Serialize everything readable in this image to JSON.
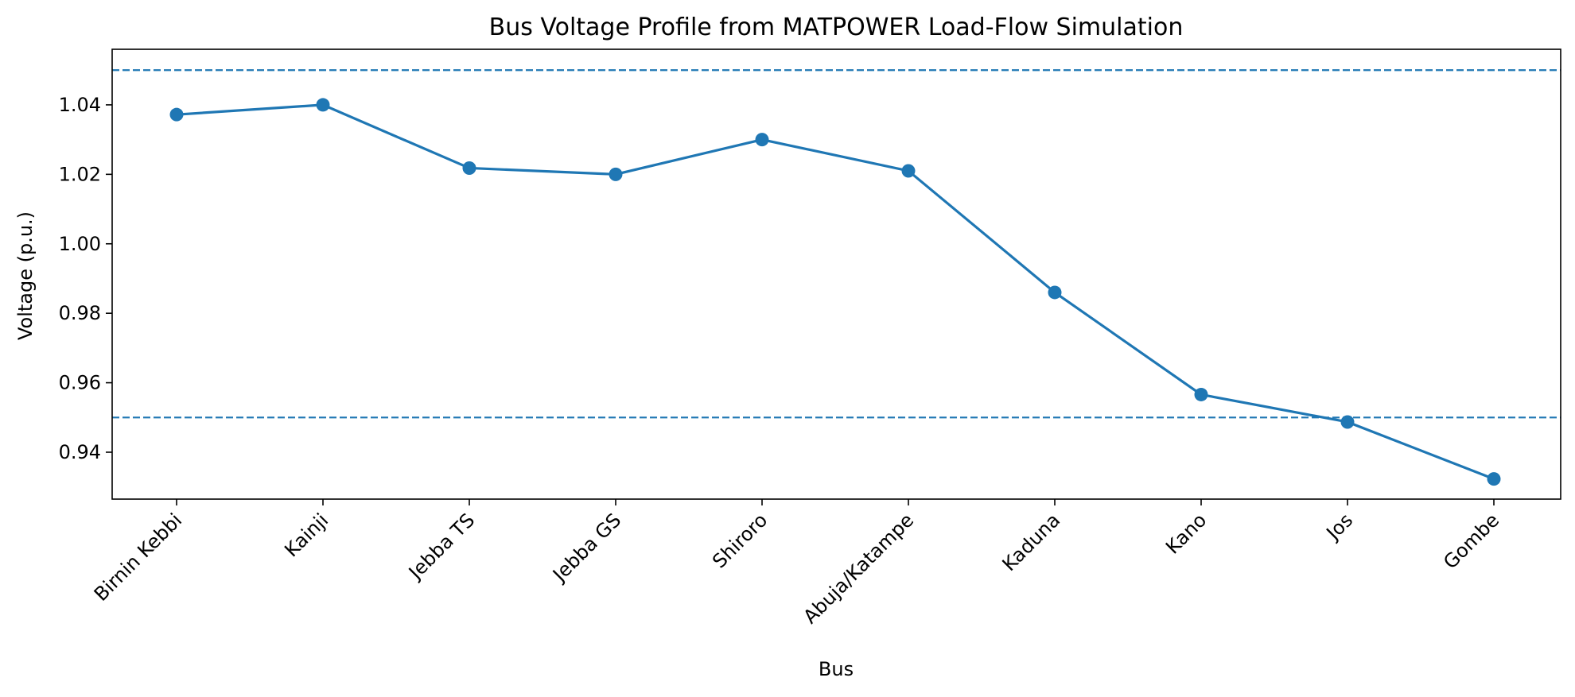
{
  "chart_data": {
    "type": "line",
    "title": "Bus Voltage Profile from MATPOWER Load-Flow Simulation",
    "xlabel": "Bus",
    "ylabel": "Voltage (p.u.)",
    "categories": [
      "Birnin Kebbi",
      "Kainji",
      "Jebba TS",
      "Jebba GS",
      "Shiroro",
      "Abuja/Katampe",
      "Kaduna",
      "Kano",
      "Jos",
      "Gombe"
    ],
    "series": [
      {
        "values": [
          1.0372,
          1.04,
          1.0218,
          1.02,
          1.03,
          1.021,
          0.986,
          0.9566,
          0.9487,
          0.9323
        ]
      }
    ],
    "reference_lines": [
      1.05,
      0.95
    ],
    "ylim": [
      0.9265,
      1.056
    ],
    "yticks": [
      "0.94",
      "0.96",
      "0.98",
      "1.00",
      "1.02",
      "1.04"
    ],
    "grid": false,
    "colors": {
      "series": "#1f77b4",
      "reference": "#1f77b4"
    }
  }
}
